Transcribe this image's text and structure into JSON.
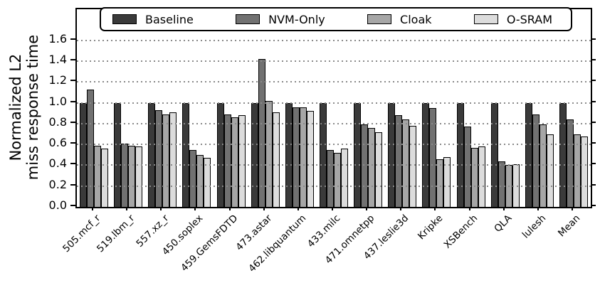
{
  "figure": {
    "ylabel_line1": "Normalized L2",
    "ylabel_line2": "miss response time"
  },
  "chart_data": {
    "type": "bar",
    "title": "",
    "xlabel": "",
    "ylabel": "Normalized L2 miss response time",
    "ylim": [
      0,
      1.9
    ],
    "yticks": [
      0.0,
      0.2,
      0.4,
      0.6,
      0.8,
      1.0,
      1.2,
      1.4,
      1.6
    ],
    "grid": "horizontal-dotted",
    "legend_position": "top-inside-horizontal",
    "categories": [
      "505.mcf_r",
      "519.lbm_r",
      "557.xz_r",
      "450.soplex",
      "459.GemsFDTD",
      "473.astar",
      "462.libquantum",
      "433.milc",
      "471.omnetpp",
      "437.leslie3d",
      "Kripke",
      "XSBench",
      "QLA",
      "lulesh",
      "Mean"
    ],
    "series": [
      {
        "name": "Baseline",
        "color": "#3a3a3a",
        "values": [
          1.0,
          1.0,
          1.0,
          1.0,
          1.0,
          1.0,
          1.0,
          1.0,
          1.0,
          1.0,
          1.0,
          1.0,
          1.0,
          1.0,
          1.0
        ]
      },
      {
        "name": "NVM-Only",
        "color": "#717171",
        "values": [
          1.13,
          0.61,
          0.93,
          0.55,
          0.89,
          1.42,
          0.96,
          0.55,
          0.79,
          0.88,
          0.95,
          0.77,
          0.44,
          0.89,
          0.84
        ]
      },
      {
        "name": "Cloak",
        "color": "#a6a6a6",
        "values": [
          0.59,
          0.59,
          0.89,
          0.5,
          0.86,
          1.02,
          0.96,
          0.52,
          0.76,
          0.84,
          0.46,
          0.57,
          0.4,
          0.79,
          0.7
        ]
      },
      {
        "name": "O-SRAM",
        "color": "#dcdcdc",
        "values": [
          0.56,
          0.58,
          0.91,
          0.47,
          0.88,
          0.91,
          0.92,
          0.56,
          0.72,
          0.78,
          0.48,
          0.58,
          0.41,
          0.7,
          0.68
        ]
      }
    ]
  }
}
